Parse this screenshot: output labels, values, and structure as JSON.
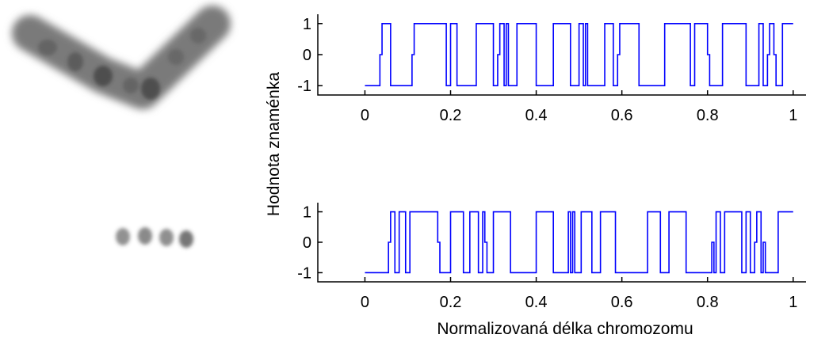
{
  "images": [
    {
      "description_name": "chromosome-bent"
    },
    {
      "description_name": "chromosome-short"
    }
  ],
  "chart_data": {
    "type": "line",
    "xlabel": "Normalizovaná délka chromozomu",
    "ylabel": "Hodnota znaménka",
    "line_color": "#0000ff",
    "grid": false,
    "plots": [
      {
        "x_ticks": [
          "0",
          "0.2",
          "0.4",
          "0.6",
          "0.8",
          "1"
        ],
        "y_ticks": [
          "1",
          "0",
          "-1"
        ],
        "xlim": [
          -0.11,
          1.03
        ],
        "ylim": [
          -1.3,
          1.3
        ],
        "steps": [
          [
            0.0,
            -1
          ],
          [
            0.035,
            -1
          ],
          [
            0.035,
            0
          ],
          [
            0.04,
            0
          ],
          [
            0.04,
            1
          ],
          [
            0.06,
            1
          ],
          [
            0.06,
            -1
          ],
          [
            0.11,
            -1
          ],
          [
            0.11,
            0
          ],
          [
            0.115,
            0
          ],
          [
            0.115,
            1
          ],
          [
            0.19,
            1
          ],
          [
            0.19,
            -1
          ],
          [
            0.2,
            -1
          ],
          [
            0.2,
            1
          ],
          [
            0.215,
            1
          ],
          [
            0.215,
            -1
          ],
          [
            0.26,
            -1
          ],
          [
            0.26,
            1
          ],
          [
            0.3,
            1
          ],
          [
            0.3,
            -1
          ],
          [
            0.31,
            -1
          ],
          [
            0.31,
            0
          ],
          [
            0.315,
            0
          ],
          [
            0.315,
            1
          ],
          [
            0.325,
            1
          ],
          [
            0.325,
            -1
          ],
          [
            0.33,
            -1
          ],
          [
            0.33,
            1
          ],
          [
            0.335,
            1
          ],
          [
            0.335,
            -1
          ],
          [
            0.355,
            -1
          ],
          [
            0.355,
            1
          ],
          [
            0.4,
            1
          ],
          [
            0.4,
            -1
          ],
          [
            0.44,
            -1
          ],
          [
            0.44,
            1
          ],
          [
            0.48,
            1
          ],
          [
            0.48,
            -1
          ],
          [
            0.5,
            -1
          ],
          [
            0.5,
            1
          ],
          [
            0.51,
            1
          ],
          [
            0.51,
            -1
          ],
          [
            0.515,
            -1
          ],
          [
            0.515,
            1
          ],
          [
            0.52,
            1
          ],
          [
            0.52,
            -1
          ],
          [
            0.56,
            -1
          ],
          [
            0.56,
            1
          ],
          [
            0.58,
            1
          ],
          [
            0.58,
            -1
          ],
          [
            0.59,
            -1
          ],
          [
            0.59,
            0
          ],
          [
            0.595,
            0
          ],
          [
            0.595,
            1
          ],
          [
            0.64,
            1
          ],
          [
            0.64,
            -1
          ],
          [
            0.7,
            -1
          ],
          [
            0.7,
            1
          ],
          [
            0.76,
            1
          ],
          [
            0.76,
            -1
          ],
          [
            0.77,
            -1
          ],
          [
            0.77,
            1
          ],
          [
            0.8,
            1
          ],
          [
            0.8,
            0
          ],
          [
            0.805,
            0
          ],
          [
            0.805,
            -1
          ],
          [
            0.835,
            -1
          ],
          [
            0.835,
            1
          ],
          [
            0.89,
            1
          ],
          [
            0.89,
            -1
          ],
          [
            0.92,
            -1
          ],
          [
            0.92,
            1
          ],
          [
            0.93,
            1
          ],
          [
            0.93,
            -1
          ],
          [
            0.94,
            -1
          ],
          [
            0.94,
            0
          ],
          [
            0.945,
            0
          ],
          [
            0.945,
            1
          ],
          [
            0.955,
            1
          ],
          [
            0.955,
            0
          ],
          [
            0.96,
            0
          ],
          [
            0.96,
            -1
          ],
          [
            0.975,
            -1
          ],
          [
            0.975,
            1
          ],
          [
            1.0,
            1
          ]
        ]
      },
      {
        "x_ticks": [
          "0",
          "0.2",
          "0.4",
          "0.6",
          "0.8",
          "1"
        ],
        "y_ticks": [
          "1",
          "0",
          "-1"
        ],
        "xlim": [
          -0.11,
          1.03
        ],
        "ylim": [
          -1.3,
          1.3
        ],
        "steps": [
          [
            0.0,
            -1
          ],
          [
            0.055,
            -1
          ],
          [
            0.055,
            0
          ],
          [
            0.06,
            0
          ],
          [
            0.06,
            1
          ],
          [
            0.07,
            1
          ],
          [
            0.07,
            -1
          ],
          [
            0.08,
            -1
          ],
          [
            0.08,
            1
          ],
          [
            0.095,
            1
          ],
          [
            0.095,
            -1
          ],
          [
            0.105,
            -1
          ],
          [
            0.105,
            1
          ],
          [
            0.17,
            1
          ],
          [
            0.17,
            0
          ],
          [
            0.175,
            0
          ],
          [
            0.175,
            -1
          ],
          [
            0.2,
            -1
          ],
          [
            0.2,
            1
          ],
          [
            0.23,
            1
          ],
          [
            0.23,
            -1
          ],
          [
            0.245,
            -1
          ],
          [
            0.245,
            1
          ],
          [
            0.265,
            1
          ],
          [
            0.265,
            -1
          ],
          [
            0.275,
            -1
          ],
          [
            0.275,
            1
          ],
          [
            0.28,
            1
          ],
          [
            0.28,
            0
          ],
          [
            0.285,
            0
          ],
          [
            0.285,
            -1
          ],
          [
            0.3,
            -1
          ],
          [
            0.3,
            1
          ],
          [
            0.34,
            1
          ],
          [
            0.34,
            -1
          ],
          [
            0.4,
            -1
          ],
          [
            0.4,
            1
          ],
          [
            0.44,
            1
          ],
          [
            0.44,
            -1
          ],
          [
            0.475,
            -1
          ],
          [
            0.475,
            1
          ],
          [
            0.48,
            1
          ],
          [
            0.48,
            -1
          ],
          [
            0.485,
            -1
          ],
          [
            0.485,
            1
          ],
          [
            0.49,
            1
          ],
          [
            0.49,
            -1
          ],
          [
            0.505,
            -1
          ],
          [
            0.505,
            1
          ],
          [
            0.53,
            1
          ],
          [
            0.53,
            -1
          ],
          [
            0.55,
            -1
          ],
          [
            0.55,
            1
          ],
          [
            0.585,
            1
          ],
          [
            0.585,
            -1
          ],
          [
            0.66,
            -1
          ],
          [
            0.66,
            1
          ],
          [
            0.69,
            1
          ],
          [
            0.69,
            -1
          ],
          [
            0.71,
            -1
          ],
          [
            0.71,
            1
          ],
          [
            0.75,
            1
          ],
          [
            0.75,
            -1
          ],
          [
            0.81,
            -1
          ],
          [
            0.81,
            0
          ],
          [
            0.815,
            0
          ],
          [
            0.815,
            -1
          ],
          [
            0.82,
            -1
          ],
          [
            0.82,
            1
          ],
          [
            0.83,
            1
          ],
          [
            0.83,
            -1
          ],
          [
            0.84,
            -1
          ],
          [
            0.84,
            1
          ],
          [
            0.88,
            1
          ],
          [
            0.88,
            -1
          ],
          [
            0.89,
            -1
          ],
          [
            0.89,
            1
          ],
          [
            0.9,
            1
          ],
          [
            0.9,
            -1
          ],
          [
            0.91,
            -1
          ],
          [
            0.91,
            0
          ],
          [
            0.915,
            0
          ],
          [
            0.915,
            1
          ],
          [
            0.925,
            1
          ],
          [
            0.925,
            -1
          ],
          [
            0.93,
            -1
          ],
          [
            0.93,
            0
          ],
          [
            0.935,
            0
          ],
          [
            0.935,
            -1
          ],
          [
            0.965,
            -1
          ],
          [
            0.965,
            1
          ],
          [
            1.0,
            1
          ]
        ]
      }
    ]
  }
}
